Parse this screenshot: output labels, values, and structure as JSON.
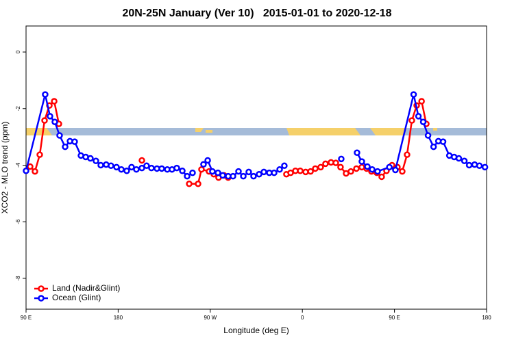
{
  "chart_data": {
    "type": "line",
    "title": "20N-25N January (Ver 10)   2015-01-01 to 2020-12-18",
    "x_label": "Longitude (deg E)",
    "y_label": "XCO2 - MLO trend (ppm)",
    "xlim": [
      90,
      540
    ],
    "xticks": [
      {
        "value": 90,
        "label": "90 E"
      },
      180,
      {
        "value": 270,
        "label": "90 W"
      },
      {
        "value": 360,
        "label": "0"
      },
      {
        "value": 450,
        "label": "90 E"
      },
      {
        "value": 540,
        "label": "180"
      }
    ],
    "ylim": [
      -9.09,
      0.92
    ],
    "yticks": [
      0,
      -2,
      -4,
      -6,
      -8
    ],
    "legend": "bottom-left",
    "series": [
      {
        "name": "Land (Nadir&Glint)",
        "color": "#ff0000",
        "x": [
          94,
          98.7,
          103.4,
          108.1,
          112.8,
          117.5,
          122.1,
          160,
          203.2,
          230,
          249.4,
          258.1,
          261.4,
          268.8,
          273.5,
          278.1,
          283.5,
          287.5,
          315,
          344.4,
          348.5,
          353.2,
          357.9,
          363.2,
          368,
          372.6,
          377.9,
          382.6,
          388,
          392.7,
          397.3,
          402.7,
          407.4,
          412.8,
          418.1,
          422.8,
          427.5,
          432.8,
          437.5,
          442.2,
          447.6,
          452.9,
          457.6,
          462.3,
          467,
          471.7,
          476.5,
          481.1
        ],
        "values": [
          -4.05,
          -4.22,
          -3.63,
          -2.42,
          -1.89,
          -1.74,
          -2.54,
          null,
          -3.83,
          null,
          -4.66,
          -4.66,
          -4.15,
          -4.22,
          -4.32,
          -4.44,
          -4.36,
          -4.44,
          null,
          -4.32,
          -4.27,
          -4.2,
          -4.2,
          -4.24,
          -4.22,
          -4.12,
          -4.07,
          -3.95,
          -3.9,
          -3.92,
          -4.07,
          -4.29,
          -4.22,
          -4.12,
          -4.07,
          -4.12,
          -4.22,
          -4.27,
          -4.41,
          -4.2,
          -4.0,
          -4.07,
          -4.22,
          -3.63,
          -2.42,
          -1.89,
          -1.74,
          -2.54
        ]
      },
      {
        "name": "Ocean (Glint)",
        "color": "#0000ff",
        "x": [
          90,
          108.7,
          113.4,
          118.1,
          122.8,
          128.2,
          132.9,
          137.5,
          143.6,
          148.3,
          152.9,
          158.3,
          163,
          168.3,
          173,
          178.4,
          183.1,
          188.4,
          193.1,
          197.8,
          203.2,
          207.8,
          212.5,
          217.9,
          222.6,
          228,
          232.6,
          237.3,
          242.7,
          247.4,
          252.7,
          258,
          263.4,
          267.5,
          272.1,
          277.5,
          282.2,
          287.5,
          292.2,
          297.6,
          302.3,
          307.6,
          312.3,
          317.7,
          322.4,
          327.7,
          332.4,
          337.8,
          342.4,
          370,
          398,
          405,
          413.4,
          418.1,
          423.5,
          428.2,
          433.5,
          445,
          450.9,
          468.7,
          473.4,
          478.1,
          482.8,
          488.2,
          492.9,
          497.5,
          503.6,
          508.3,
          512.9,
          518.3,
          523,
          528.3,
          533,
          538.4
        ],
        "values": [
          -4.2,
          -1.5,
          -2.27,
          -2.47,
          -2.95,
          -3.35,
          -3.15,
          -3.17,
          -3.66,
          -3.71,
          -3.76,
          -3.85,
          -4.0,
          -3.98,
          -4.02,
          -4.07,
          -4.15,
          -4.2,
          -4.07,
          -4.15,
          -4.1,
          -4.02,
          -4.1,
          -4.12,
          -4.12,
          -4.15,
          -4.15,
          -4.1,
          -4.2,
          -4.39,
          -4.27,
          null,
          -3.97,
          -3.83,
          -4.22,
          -4.27,
          -4.36,
          -4.39,
          -4.39,
          -4.22,
          -4.39,
          -4.24,
          -4.39,
          -4.32,
          -4.24,
          -4.27,
          -4.27,
          -4.15,
          -4.02,
          null,
          -3.78,
          null,
          -3.56,
          -3.87,
          -4.05,
          -4.15,
          -4.22,
          -4.07,
          -4.17,
          -1.5,
          -2.27,
          -2.47,
          -2.95,
          -3.35,
          -3.15,
          -3.17,
          -3.66,
          -3.71,
          -3.76,
          -3.85,
          -4.0,
          -3.98,
          -4.02,
          -4.07
        ]
      }
    ]
  }
}
